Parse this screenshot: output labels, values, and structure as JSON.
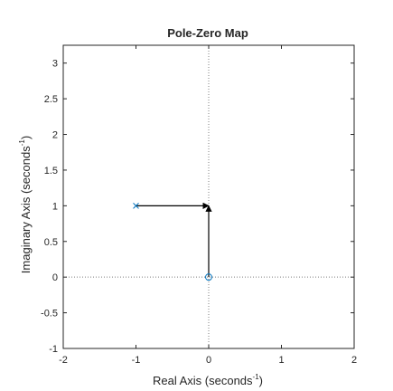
{
  "chart_data": {
    "type": "scatter",
    "title": "Pole-Zero Map",
    "xlabel": "Real Axis (seconds",
    "xlabel_sup": "-1",
    "xlabel_end": ")",
    "ylabel": "Imaginary Axis (seconds",
    "ylabel_sup": "-1",
    "ylabel_end": ")",
    "xlim": [
      -2,
      2
    ],
    "ylim": [
      -1,
      3.25
    ],
    "xticks": [
      -2,
      -1,
      0,
      1,
      2
    ],
    "xtick_labels": [
      "-2",
      "-1",
      "0",
      "1",
      "2"
    ],
    "yticks": [
      -1,
      -0.5,
      0,
      0.5,
      1,
      1.5,
      2,
      2.5,
      3
    ],
    "ytick_labels": [
      "-1",
      "-0.5",
      "0",
      "0.5",
      "1",
      "1.5",
      "2",
      "2.5",
      "3"
    ],
    "grid": false,
    "reference_lines": {
      "x": 0,
      "y": 0,
      "style": "dotted"
    },
    "poles": [
      {
        "x": -1,
        "y": 1,
        "marker": "x"
      }
    ],
    "zeros": [
      {
        "x": 0,
        "y": 0,
        "marker": "o"
      }
    ],
    "arrows": [
      {
        "from": [
          -1,
          1
        ],
        "to": [
          0,
          1
        ]
      },
      {
        "from": [
          0,
          0
        ],
        "to": [
          0,
          1
        ]
      }
    ],
    "colors": {
      "marker": "#0072bd",
      "arrow": "#000000",
      "axes": "#262626",
      "reference": "#7f7f7f"
    }
  }
}
